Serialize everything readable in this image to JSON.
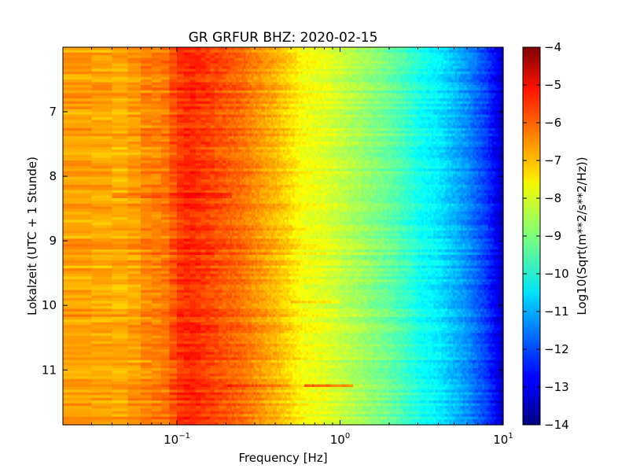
{
  "chart_data": {
    "type": "heatmap",
    "title": "GR GRFUR BHZ: 2020-02-15",
    "xlabel": "Frequency [Hz]",
    "ylabel": "Lokalzeit (UTC + 1 Stunde)",
    "x_scale": "log",
    "xlim": [
      0.02,
      10
    ],
    "ylim": [
      11.85,
      6.0
    ],
    "y_inverted": true,
    "x_ticks": [
      {
        "value": 0.1,
        "base": "10",
        "exp": "−1"
      },
      {
        "value": 1,
        "base": "10",
        "exp": "0"
      },
      {
        "value": 10,
        "base": "10",
        "exp": "1"
      }
    ],
    "y_ticks": [
      "7",
      "8",
      "9",
      "10",
      "11"
    ],
    "colorbar": {
      "label": "Log10(Sqrt(m**2/s**2/Hz))",
      "range": [
        -14,
        -4
      ],
      "ticks": [
        "−4",
        "−5",
        "−6",
        "−7",
        "−8",
        "−9",
        "−10",
        "−11",
        "−12",
        "−13",
        "−14"
      ],
      "colormap": "jet"
    },
    "spectrum_profile": {
      "frequency_hz": [
        0.02,
        0.03,
        0.04,
        0.05,
        0.06,
        0.07,
        0.08,
        0.09,
        0.1,
        0.12,
        0.15,
        0.2,
        0.25,
        0.3,
        0.4,
        0.5,
        0.6,
        0.8,
        1.0,
        1.3,
        1.6,
        2.0,
        2.5,
        3.0,
        4.0,
        5.0,
        6.0,
        7.0,
        8.0,
        9.0,
        10.0
      ],
      "log10_amplitude": [
        -6.8,
        -6.8,
        -6.95,
        -6.9,
        -6.6,
        -6.5,
        -6.5,
        -6.3,
        -5.8,
        -5.6,
        -5.8,
        -6.1,
        -6.3,
        -6.6,
        -7.0,
        -7.4,
        -7.8,
        -8.0,
        -8.3,
        -8.6,
        -8.9,
        -9.2,
        -9.6,
        -10.0,
        -10.4,
        -10.9,
        -11.3,
        -11.8,
        -12.2,
        -12.8,
        -13.4
      ]
    },
    "features": [
      {
        "time_hour": 8.3,
        "fmin_hz": 0.04,
        "fmax_hz": 0.22,
        "delta": 0.5
      },
      {
        "time_hour": 9.95,
        "fmin_hz": 0.5,
        "fmax_hz": 1.0,
        "delta": 0.6
      },
      {
        "time_hour": 11.25,
        "fmin_hz": 0.2,
        "fmax_hz": 0.5,
        "delta": 0.4
      },
      {
        "time_hour": 11.23,
        "fmin_hz": 0.6,
        "fmax_hz": 1.2,
        "delta": 1.5
      }
    ]
  }
}
